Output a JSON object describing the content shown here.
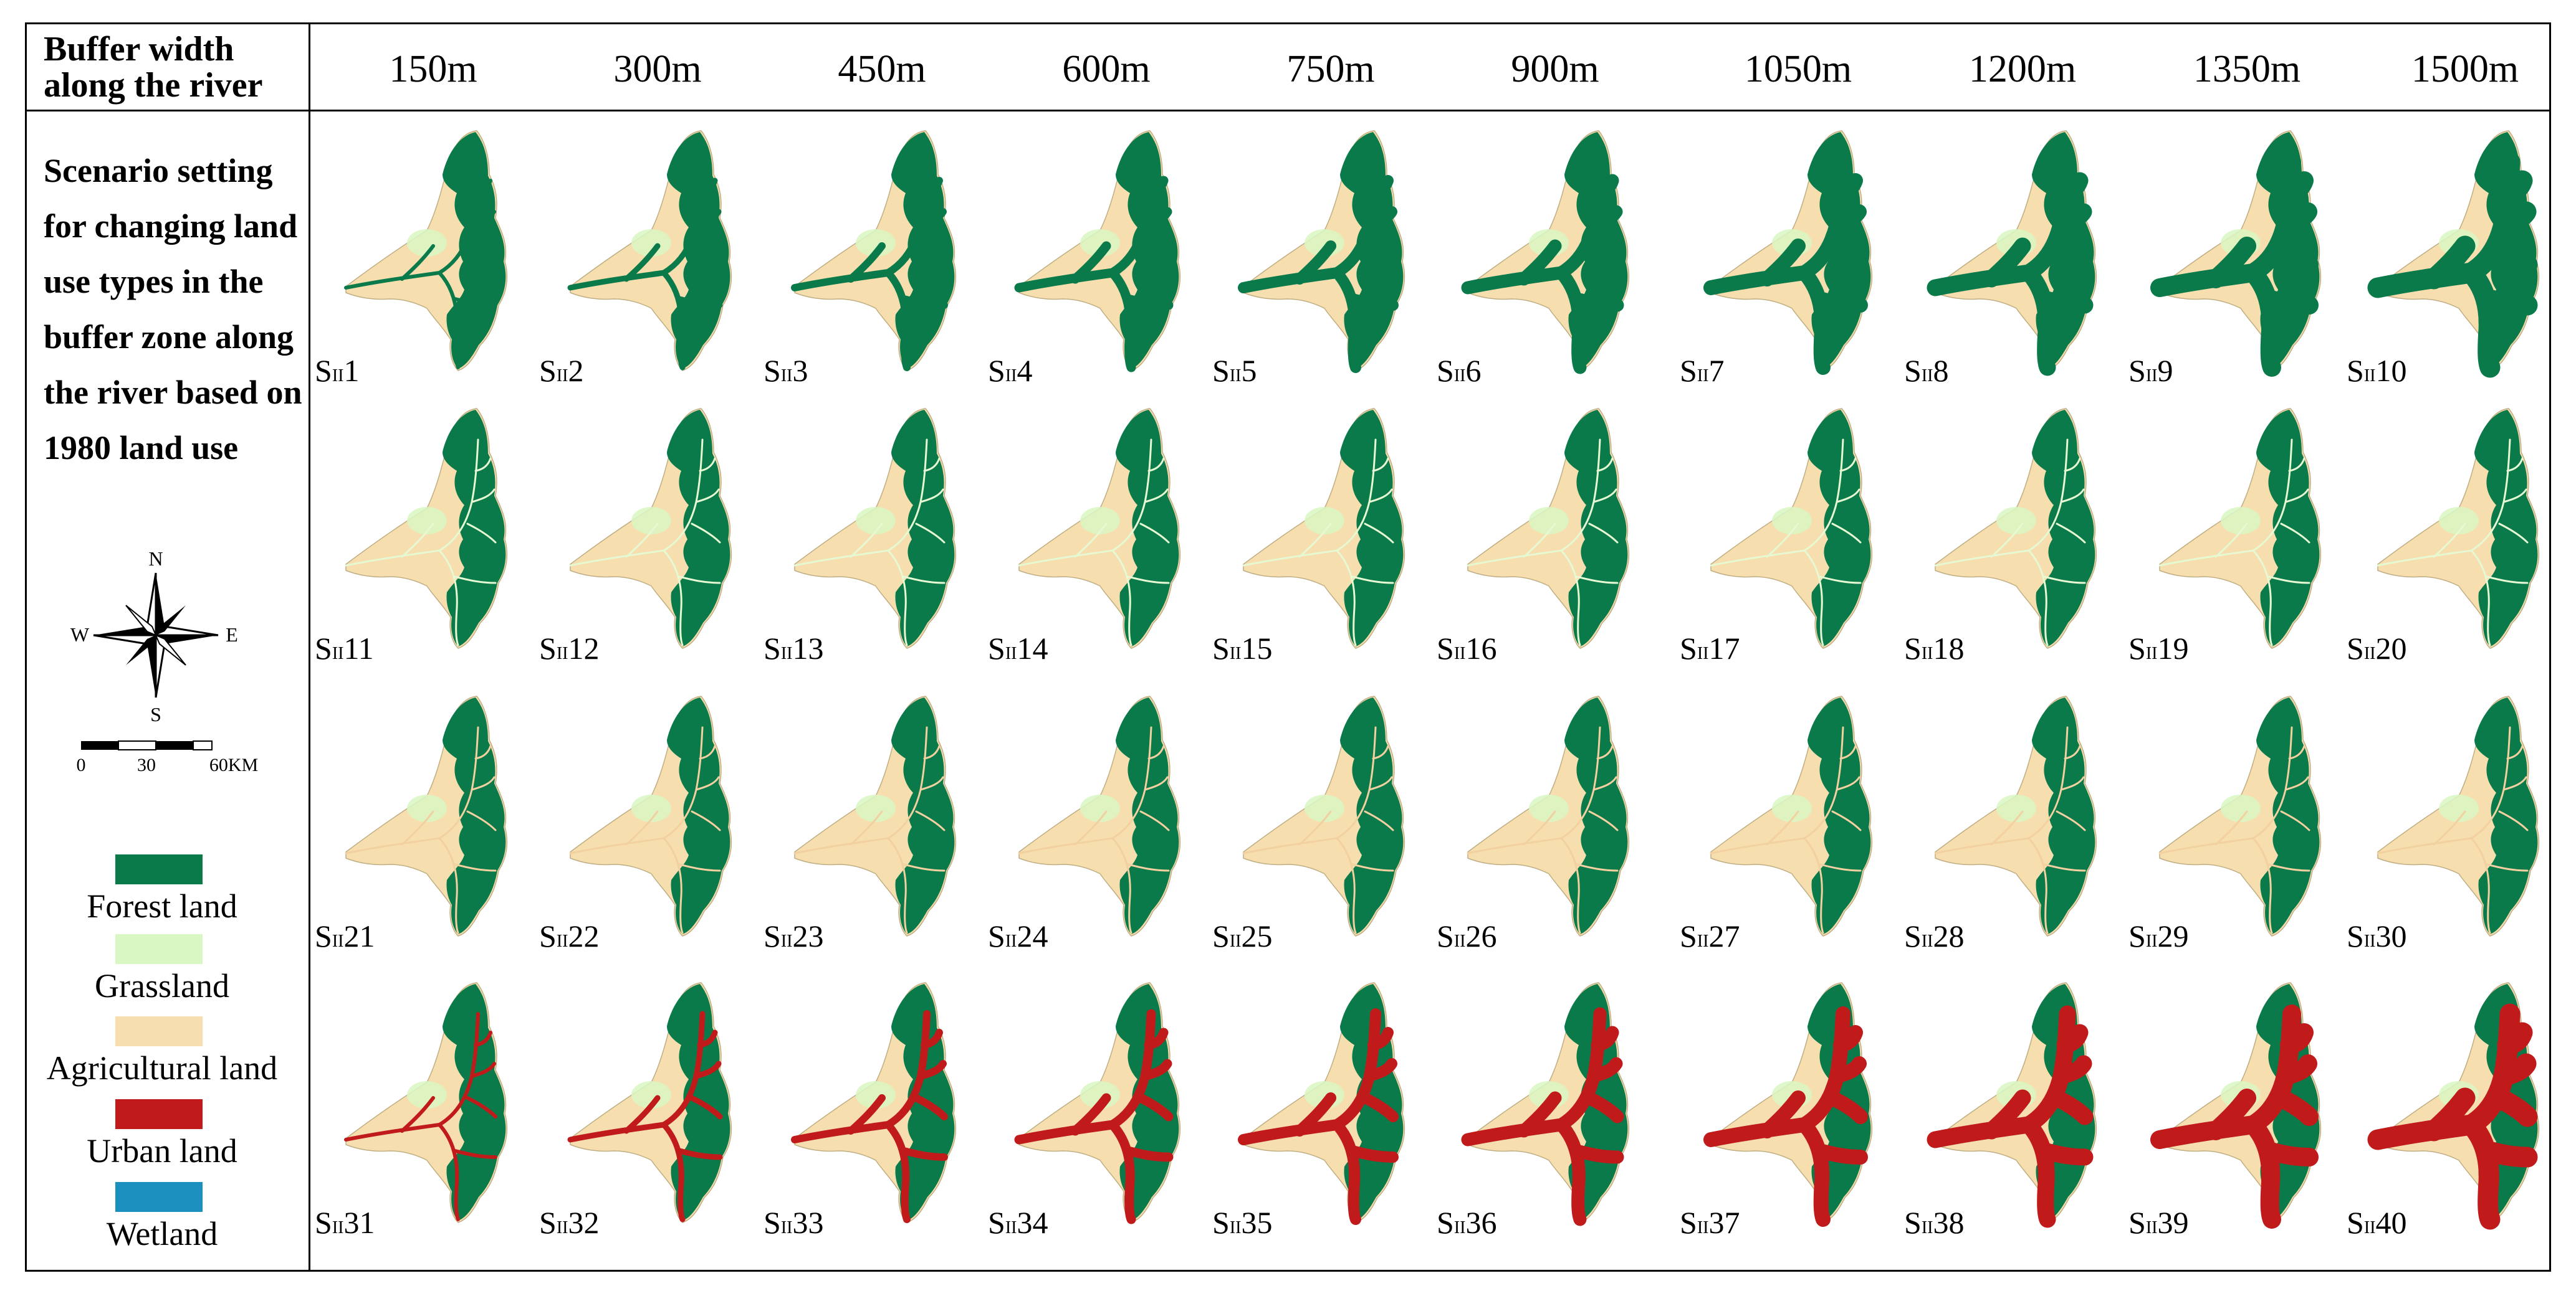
{
  "header": {
    "row_label": "Buffer width along the river",
    "columns": [
      "150m",
      "300m",
      "450m",
      "600m",
      "750m",
      "900m",
      "1050m",
      "1200m",
      "1350m",
      "1500m"
    ]
  },
  "left_panel": {
    "scenario_text": "Scenario setting for changing land use types in the buffer zone along the river based on 1980 land use",
    "compass": {
      "n": "N",
      "s": "S",
      "e": "E",
      "w": "W"
    },
    "scale": {
      "t0": "0",
      "t1": "30",
      "t2": "60KM"
    }
  },
  "legend": [
    {
      "label": "Forest land",
      "color": "#0b7a4b"
    },
    {
      "label": "Grassland",
      "color": "#d9f7c2"
    },
    {
      "label": "Agricultural land",
      "color": "#f7deae"
    },
    {
      "label": "Urban land",
      "color": "#c01a1a"
    },
    {
      "label": "Wetland",
      "color": "#1b8fbd"
    }
  ],
  "cells": [
    "1",
    "2",
    "3",
    "4",
    "5",
    "6",
    "7",
    "8",
    "9",
    "10",
    "11",
    "12",
    "13",
    "14",
    "15",
    "16",
    "17",
    "18",
    "19",
    "20",
    "21",
    "22",
    "23",
    "24",
    "25",
    "26",
    "27",
    "28",
    "29",
    "30",
    "31",
    "32",
    "33",
    "34",
    "35",
    "36",
    "37",
    "38",
    "39",
    "40"
  ],
  "cell_prefix": "S",
  "cell_subscript": "II",
  "rows": [
    {
      "buffer_type": "forest"
    },
    {
      "buffer_type": "grassland"
    },
    {
      "buffer_type": "agricultural"
    },
    {
      "buffer_type": "urban"
    }
  ]
}
